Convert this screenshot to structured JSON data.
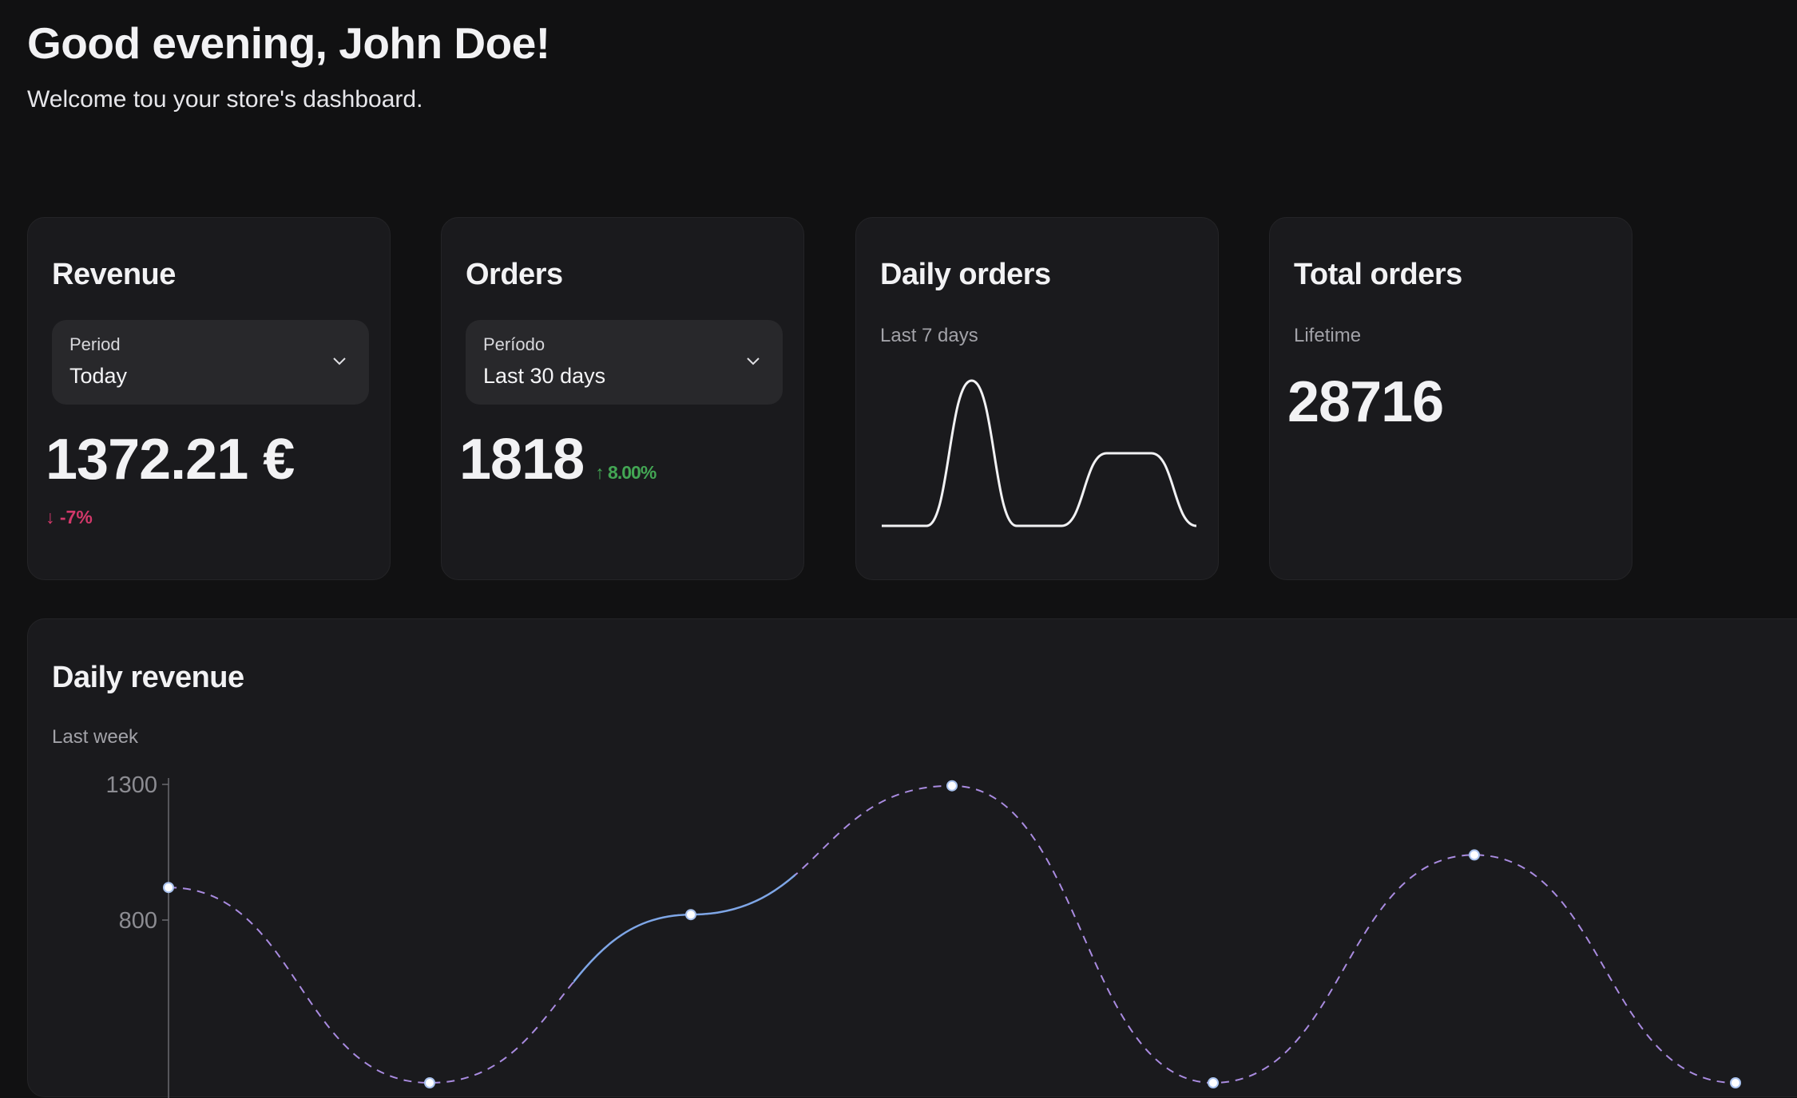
{
  "header": {
    "greeting": "Good evening, John Doe!",
    "subtitle": "Welcome tou your store's dashboard."
  },
  "cards": {
    "revenue": {
      "title": "Revenue",
      "select_label": "Period",
      "select_value": "Today",
      "value": "1372.21 €",
      "change": "↓ -7%",
      "change_color": "#d2386a"
    },
    "orders": {
      "title": "Orders",
      "select_label": "Período",
      "select_value": "Last 30 days",
      "value": "1818",
      "change": "↑ 8.00%",
      "change_color": "#43a654"
    },
    "daily_orders": {
      "title": "Daily orders",
      "subtitle": "Last 7 days"
    },
    "total_orders": {
      "title": "Total orders",
      "subtitle": "Lifetime",
      "value": "28716"
    }
  },
  "daily_revenue": {
    "title": "Daily revenue",
    "subtitle": "Last week"
  },
  "chart_data": [
    {
      "type": "line",
      "title": "Daily orders",
      "subtitle": "Last 7 days",
      "values": [
        0,
        0,
        2,
        0,
        0,
        1,
        1,
        0
      ],
      "color": "#f2f2f4"
    },
    {
      "type": "line",
      "title": "Daily revenue",
      "subtitle": "Last week",
      "x": [
        0,
        1,
        2,
        3,
        4,
        5,
        6
      ],
      "values": [
        920,
        200,
        820,
        1295,
        200,
        1040,
        200
      ],
      "yticks": [
        800,
        1300
      ],
      "ylabels": [
        "800",
        "1300"
      ],
      "series_color": "#a98be0",
      "highlight_color": "#7ea6e6"
    }
  ]
}
